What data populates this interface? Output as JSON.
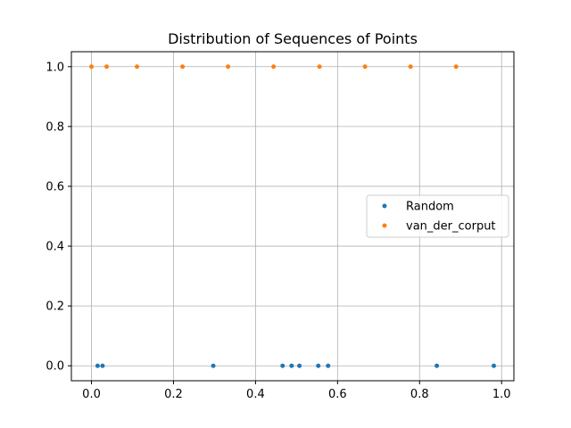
{
  "chart_data": {
    "type": "scatter",
    "title": "Distribution of Sequences of Points",
    "xlabel": "",
    "ylabel": "",
    "xlim": [
      -0.049,
      1.03
    ],
    "ylim": [
      -0.05,
      1.05
    ],
    "xticks": [
      0.0,
      0.2,
      0.4,
      0.6,
      0.8,
      1.0
    ],
    "yticks": [
      0.0,
      0.2,
      0.4,
      0.6,
      0.8,
      1.0
    ],
    "xtick_labels": [
      "0.0",
      "0.2",
      "0.4",
      "0.6",
      "0.8",
      "1.0"
    ],
    "ytick_labels": [
      "0.0",
      "0.2",
      "0.4",
      "0.6",
      "0.8",
      "1.0"
    ],
    "grid": true,
    "legend_position": "center-right",
    "series": [
      {
        "name": "Random",
        "color": "#1f77b4",
        "x": [
          0.015,
          0.027,
          0.297,
          0.466,
          0.488,
          0.507,
          0.553,
          0.577,
          0.842,
          0.981
        ],
        "y": [
          0,
          0,
          0,
          0,
          0,
          0,
          0,
          0,
          0,
          0
        ]
      },
      {
        "name": "van_der_corput",
        "color": "#ff7f0e",
        "x": [
          0.0,
          0.037,
          0.111,
          0.222,
          0.333,
          0.444,
          0.556,
          0.667,
          0.778,
          0.889
        ],
        "y": [
          1,
          1,
          1,
          1,
          1,
          1,
          1,
          1,
          1,
          1
        ]
      }
    ]
  }
}
